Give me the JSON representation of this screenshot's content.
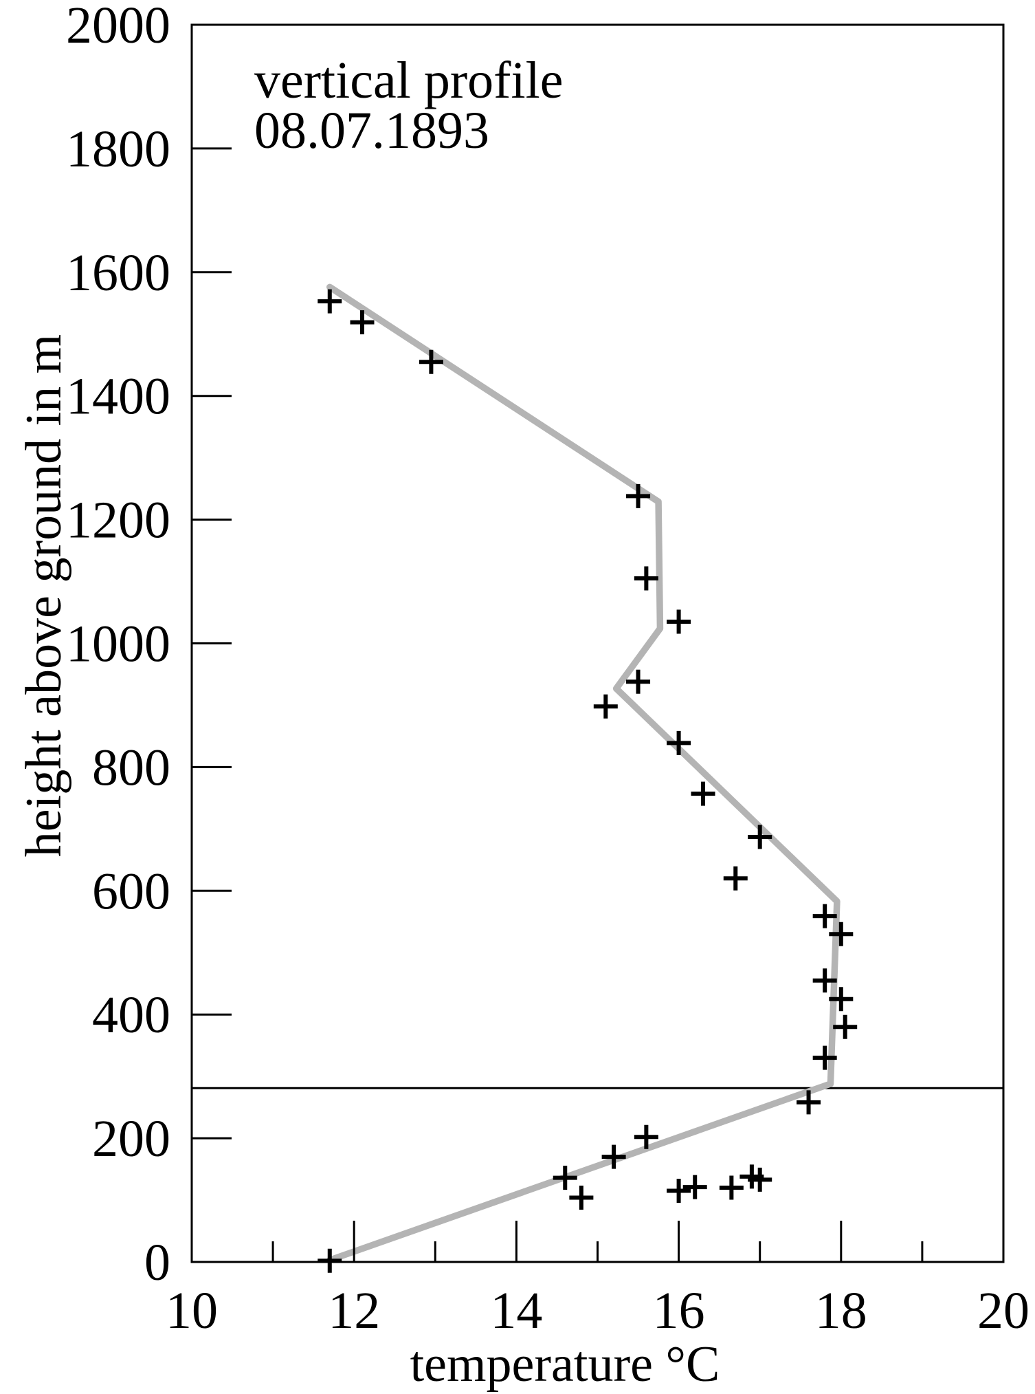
{
  "chart_data": {
    "type": "scatter",
    "annotation": {
      "line1": "vertical profile",
      "line2": "08.07.1893"
    },
    "xlabel": "temperature °C",
    "ylabel": "height above ground in m",
    "xlim": [
      10,
      20
    ],
    "ylim": [
      0,
      2000
    ],
    "x_major_ticks": [
      10,
      12,
      14,
      16,
      18,
      20
    ],
    "x_minor_ticks": [
      11,
      13,
      15,
      17,
      19
    ],
    "y_major_ticks": [
      0,
      200,
      400,
      600,
      800,
      1000,
      1200,
      1400,
      1600,
      1800,
      2000
    ],
    "grid": "off",
    "legend": "none",
    "marker": "plus",
    "reference_line_height_m": 281,
    "colors": {
      "marker": "#000000",
      "fit_line": "#b4b4b4",
      "axis": "#000000",
      "background": "#ffffff"
    },
    "points_temp_height": [
      [
        11.7,
        1553
      ],
      [
        12.1,
        1519
      ],
      [
        12.95,
        1455
      ],
      [
        15.5,
        1238
      ],
      [
        15.6,
        1105
      ],
      [
        16.0,
        1035
      ],
      [
        15.5,
        938
      ],
      [
        15.1,
        898
      ],
      [
        16.0,
        839
      ],
      [
        16.3,
        757
      ],
      [
        17.0,
        687
      ],
      [
        16.7,
        620
      ],
      [
        17.8,
        559
      ],
      [
        18.0,
        530
      ],
      [
        17.8,
        455
      ],
      [
        18.0,
        425
      ],
      [
        18.05,
        380
      ],
      [
        17.8,
        330
      ],
      [
        17.6,
        258
      ],
      [
        15.6,
        202
      ],
      [
        15.2,
        170
      ],
      [
        14.6,
        136
      ],
      [
        14.8,
        104
      ],
      [
        16.0,
        115
      ],
      [
        16.2,
        121
      ],
      [
        16.65,
        120
      ],
      [
        16.9,
        138
      ],
      [
        17.0,
        133
      ],
      [
        11.7,
        2
      ]
    ],
    "fit_line_temp_height": [
      [
        11.7,
        1576
      ],
      [
        15.75,
        1229
      ],
      [
        15.77,
        1024
      ],
      [
        15.23,
        927
      ],
      [
        17.95,
        583
      ],
      [
        17.87,
        288
      ],
      [
        11.7,
        3
      ]
    ]
  }
}
